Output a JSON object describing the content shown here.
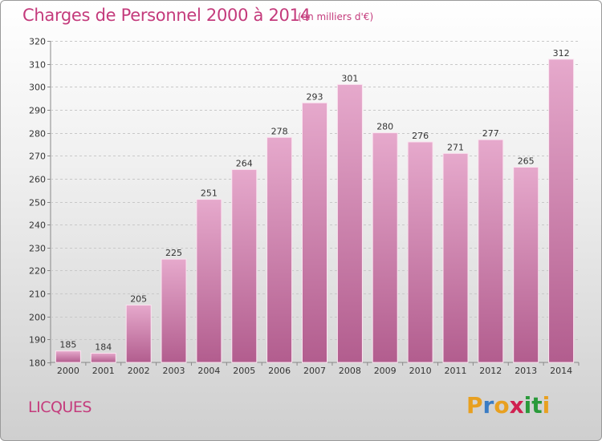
{
  "header": {
    "title": "Charges de Personnel 2000 à 2014",
    "subtitle": "(en milliers d'€)"
  },
  "footer": {
    "commune": "LICQUES",
    "logo_letters": [
      "P",
      "r",
      "o",
      "x",
      "i",
      "t",
      "i"
    ],
    "logo_colors": [
      "#e8a020",
      "#3a7cc4",
      "#e8a020",
      "#d02050",
      "#2a9a3a",
      "#2a9a3a",
      "#e8a020"
    ]
  },
  "colors": {
    "title": "#c43b7c",
    "bar_top": "#e6a9cc",
    "bar_bottom": "#b25d8e"
  },
  "chart_data": {
    "type": "bar",
    "categories": [
      "2000",
      "2001",
      "2002",
      "2003",
      "2004",
      "2005",
      "2006",
      "2007",
      "2008",
      "2009",
      "2010",
      "2011",
      "2012",
      "2013",
      "2014"
    ],
    "values": [
      185,
      184,
      205,
      225,
      251,
      264,
      278,
      293,
      301,
      280,
      276,
      271,
      277,
      265,
      312
    ],
    "ylim": [
      180,
      320
    ],
    "yticks": [
      180,
      190,
      200,
      210,
      220,
      230,
      240,
      250,
      260,
      270,
      280,
      290,
      300,
      310,
      320
    ],
    "grid": true,
    "legend": "none"
  }
}
